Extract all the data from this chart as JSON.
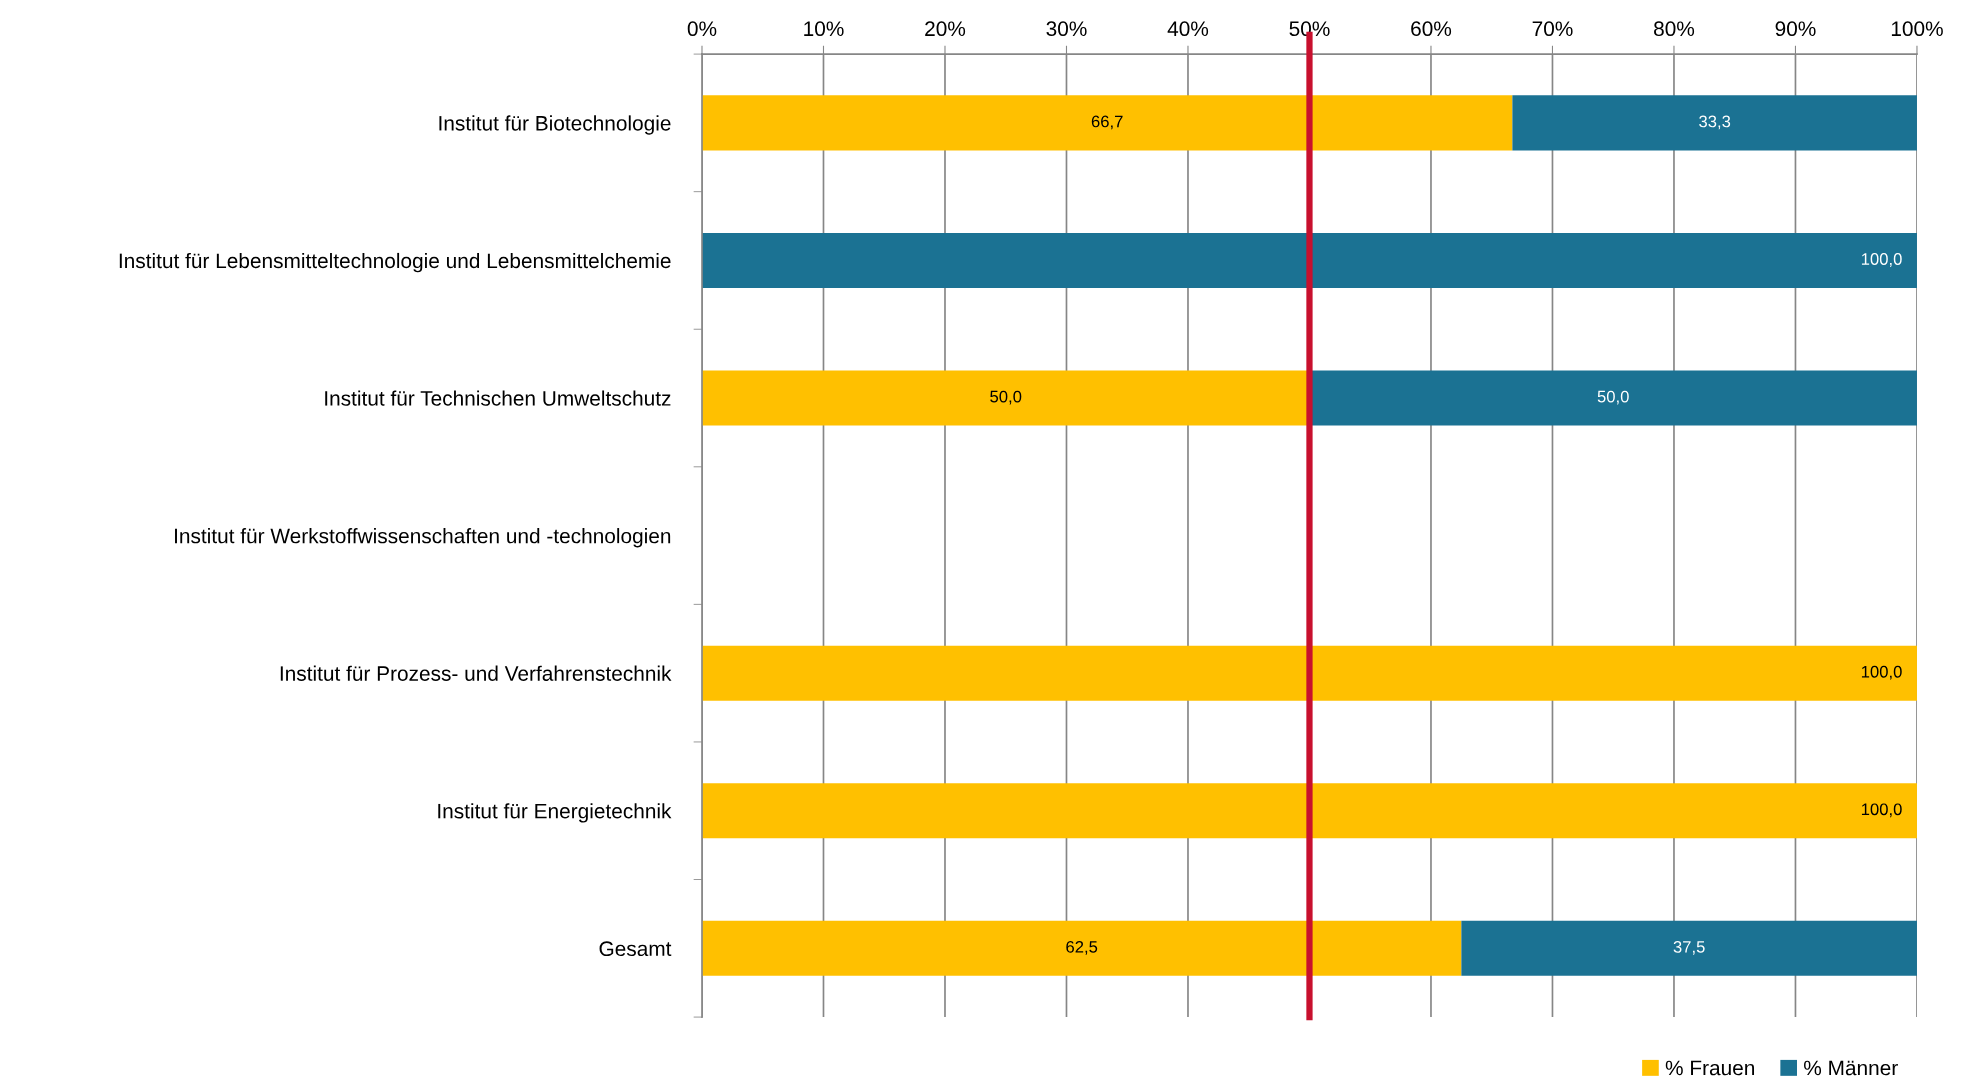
{
  "chart_data": {
    "type": "bar",
    "orientation": "horizontal",
    "stacked": true,
    "categories": [
      "Institut für Biotechnologie",
      "Institut für Lebensmitteltechnologie und Lebensmittelchemie",
      "Institut für Technischen Umweltschutz",
      "Institut für Werkstoffwissenschaften und -technologien",
      "Institut für Prozess- und Verfahrenstechnik",
      "Institut für Energietechnik",
      "Gesamt"
    ],
    "series": [
      {
        "name": "% Frauen",
        "color": "#ffc000",
        "values": [
          66.7,
          null,
          50.0,
          null,
          100.0,
          100.0,
          62.5
        ],
        "value_labels": [
          "66,7",
          null,
          "50,0",
          null,
          "100,0",
          "100,0",
          "62,5"
        ]
      },
      {
        "name": "% Männer",
        "color": "#1b7293",
        "values": [
          33.3,
          100.0,
          50.0,
          null,
          null,
          null,
          37.5
        ],
        "value_labels": [
          "33,3",
          "100,0",
          "50,0",
          null,
          null,
          null,
          "37,5"
        ]
      }
    ],
    "xlim": [
      0,
      100
    ],
    "xticks": [
      {
        "value": 0,
        "label": "0%"
      },
      {
        "value": 10,
        "label": "10%"
      },
      {
        "value": 20,
        "label": "20%"
      },
      {
        "value": 30,
        "label": "30%"
      },
      {
        "value": 40,
        "label": "40%"
      },
      {
        "value": 50,
        "label": "50%"
      },
      {
        "value": 60,
        "label": "60%"
      },
      {
        "value": 70,
        "label": "70%"
      },
      {
        "value": 80,
        "label": "80%"
      },
      {
        "value": 90,
        "label": "90%"
      },
      {
        "value": 100,
        "label": "100%"
      }
    ],
    "ref_lines": [
      {
        "axis": "x",
        "value": 50,
        "color": "#c8102e"
      }
    ],
    "grid": "x",
    "legend": "bottom right"
  }
}
